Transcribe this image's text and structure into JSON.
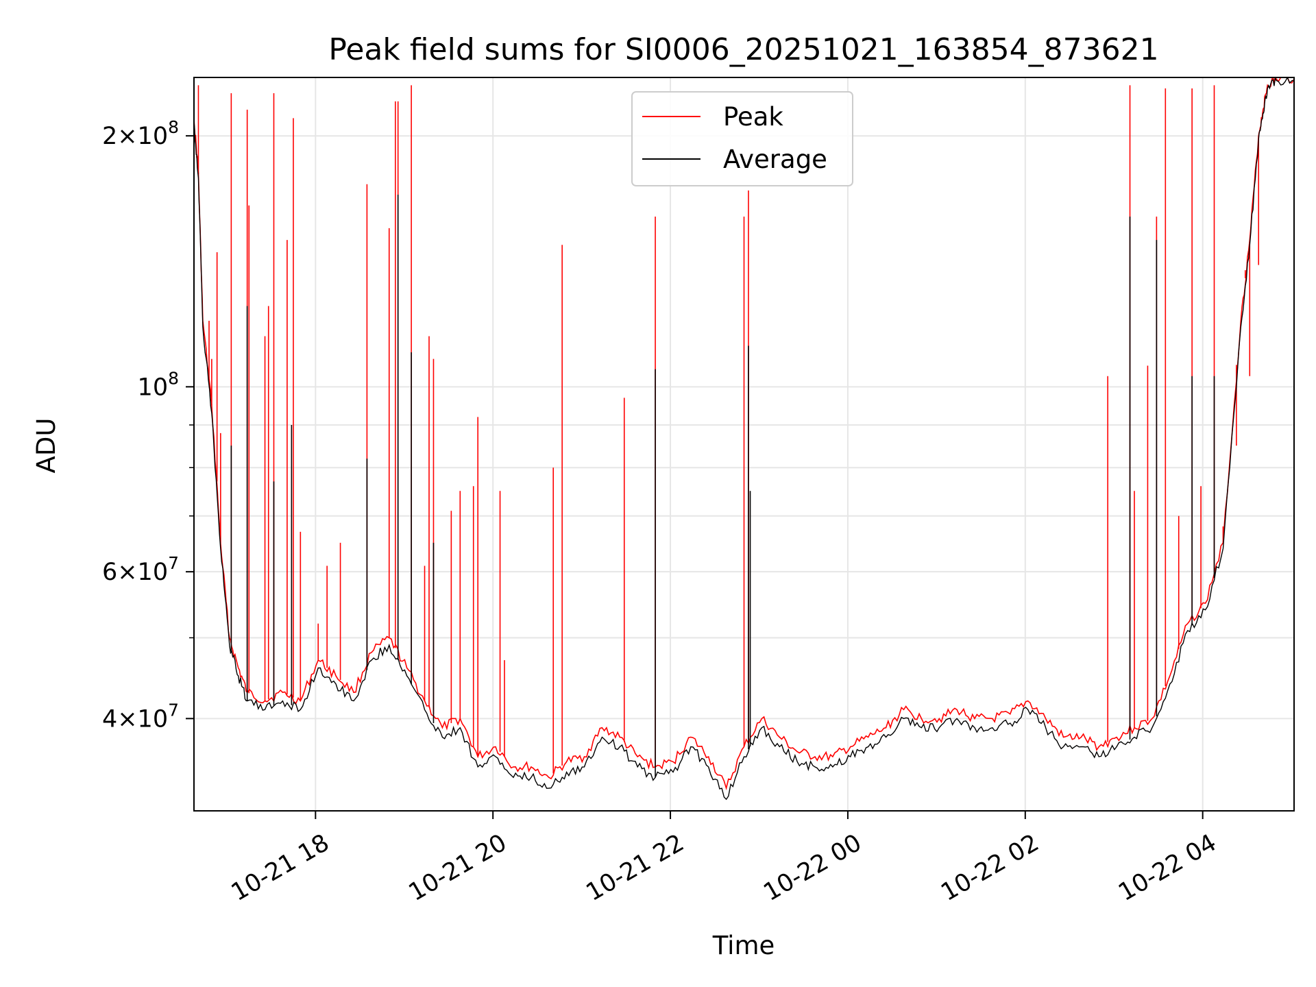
{
  "chart_data": {
    "type": "line",
    "title": "Peak field sums for SI0006_20251021_163854_873621",
    "xlabel": "Time",
    "ylabel": "ADU",
    "yscale": "log",
    "ylim": [
      31000000,
      235000000
    ],
    "xlim_hours_since_2025_10_21_16_38": [
      0,
      12.4
    ],
    "grid": true,
    "legend_position": "top-center",
    "colors": {
      "peak": "#ff0000",
      "average": "#000000"
    },
    "x_ticks": [
      {
        "label": "10-21 18",
        "hour": 1.37
      },
      {
        "label": "10-21 20",
        "hour": 3.37
      },
      {
        "label": "10-21 22",
        "hour": 5.37
      },
      {
        "label": "10-22 00",
        "hour": 7.37
      },
      {
        "label": "10-22 02",
        "hour": 9.37
      },
      {
        "label": "10-22 04",
        "hour": 11.37
      }
    ],
    "y_major_ticks": [
      {
        "label_mantissa": "4×10",
        "label_exp": "7",
        "value": 40000000
      },
      {
        "label_mantissa": "6×10",
        "label_exp": "7",
        "value": 60000000
      },
      {
        "label_mantissa": "10",
        "label_exp": "8",
        "value": 100000000
      },
      {
        "label_mantissa": "2×10",
        "label_exp": "8",
        "value": 200000000
      }
    ],
    "y_minor_ticks": [
      50000000,
      70000000,
      80000000,
      90000000
    ],
    "series": [
      {
        "name": "Peak",
        "color": "#ff0000",
        "x_hours": [
          0.0,
          0.05,
          0.1,
          0.2,
          0.3,
          0.4,
          0.5,
          0.6,
          0.8,
          1.0,
          1.2,
          1.4,
          1.6,
          1.8,
          2.0,
          2.2,
          2.4,
          2.6,
          2.8,
          3.0,
          3.2,
          3.4,
          3.6,
          3.8,
          4.0,
          4.2,
          4.4,
          4.6,
          4.8,
          5.0,
          5.2,
          5.4,
          5.6,
          5.8,
          6.0,
          6.2,
          6.4,
          6.6,
          6.8,
          7.0,
          7.2,
          7.4,
          7.6,
          7.8,
          8.0,
          8.2,
          8.4,
          8.6,
          8.8,
          9.0,
          9.2,
          9.4,
          9.6,
          9.8,
          10.0,
          10.2,
          10.4,
          10.6,
          10.8,
          11.0,
          11.2,
          11.4,
          11.6,
          11.8,
          11.9,
          12.0,
          12.05,
          12.1,
          12.2,
          12.4
        ],
        "values_M": [
          210,
          180,
          120,
          95,
          65,
          50,
          46,
          43,
          42,
          43,
          42,
          47,
          45,
          43,
          48,
          50,
          46,
          42,
          39,
          40,
          36,
          37,
          35,
          35,
          34,
          35.5,
          36,
          39,
          38,
          36,
          35,
          35.5,
          38,
          36,
          33,
          37,
          40,
          38,
          36.5,
          36,
          36,
          37,
          38,
          39,
          41,
          40,
          40,
          41,
          40,
          40,
          40.5,
          42,
          40,
          38,
          38,
          37,
          38,
          39,
          40,
          45,
          52,
          55,
          65,
          120,
          150,
          200,
          215,
          230,
          234,
          234
        ],
        "spikes": [
          {
            "hour": 0.05,
            "value_M": 230
          },
          {
            "hour": 0.17,
            "value_M": 120
          },
          {
            "hour": 0.2,
            "value_M": 108
          },
          {
            "hour": 0.26,
            "value_M": 145
          },
          {
            "hour": 0.3,
            "value_M": 88
          },
          {
            "hour": 0.42,
            "value_M": 225
          },
          {
            "hour": 0.6,
            "value_M": 215
          },
          {
            "hour": 0.62,
            "value_M": 165
          },
          {
            "hour": 0.8,
            "value_M": 115
          },
          {
            "hour": 0.84,
            "value_M": 125
          },
          {
            "hour": 0.9,
            "value_M": 225
          },
          {
            "hour": 1.05,
            "value_M": 150
          },
          {
            "hour": 1.12,
            "value_M": 210
          },
          {
            "hour": 1.2,
            "value_M": 67
          },
          {
            "hour": 1.4,
            "value_M": 52
          },
          {
            "hour": 1.5,
            "value_M": 61
          },
          {
            "hour": 1.65,
            "value_M": 65
          },
          {
            "hour": 1.95,
            "value_M": 175
          },
          {
            "hour": 2.2,
            "value_M": 155
          },
          {
            "hour": 2.27,
            "value_M": 220
          },
          {
            "hour": 2.3,
            "value_M": 220
          },
          {
            "hour": 2.45,
            "value_M": 230
          },
          {
            "hour": 2.6,
            "value_M": 61
          },
          {
            "hour": 2.65,
            "value_M": 115
          },
          {
            "hour": 2.7,
            "value_M": 108
          },
          {
            "hour": 2.9,
            "value_M": 71
          },
          {
            "hour": 3.0,
            "value_M": 75
          },
          {
            "hour": 3.15,
            "value_M": 76
          },
          {
            "hour": 3.2,
            "value_M": 92
          },
          {
            "hour": 3.45,
            "value_M": 75
          },
          {
            "hour": 3.5,
            "value_M": 47
          },
          {
            "hour": 4.05,
            "value_M": 80
          },
          {
            "hour": 4.15,
            "value_M": 148
          },
          {
            "hour": 4.85,
            "value_M": 97
          },
          {
            "hour": 5.2,
            "value_M": 160
          },
          {
            "hour": 6.2,
            "value_M": 160
          },
          {
            "hour": 6.25,
            "value_M": 172
          },
          {
            "hour": 10.3,
            "value_M": 103
          },
          {
            "hour": 10.55,
            "value_M": 230
          },
          {
            "hour": 10.6,
            "value_M": 75
          },
          {
            "hour": 10.75,
            "value_M": 106
          },
          {
            "hour": 10.85,
            "value_M": 160
          },
          {
            "hour": 10.95,
            "value_M": 228
          },
          {
            "hour": 11.1,
            "value_M": 70
          },
          {
            "hour": 11.25,
            "value_M": 228
          },
          {
            "hour": 11.35,
            "value_M": 76
          },
          {
            "hour": 11.5,
            "value_M": 230
          },
          {
            "hour": 11.6,
            "value_M": 68
          },
          {
            "hour": 11.75,
            "value_M": 85
          },
          {
            "hour": 11.85,
            "value_M": 138
          },
          {
            "hour": 11.9,
            "value_M": 103
          },
          {
            "hour": 12.0,
            "value_M": 140
          }
        ]
      },
      {
        "name": "Average",
        "color": "#000000",
        "x_hours": [
          0.0,
          0.05,
          0.1,
          0.2,
          0.3,
          0.4,
          0.5,
          0.6,
          0.8,
          1.0,
          1.2,
          1.4,
          1.6,
          1.8,
          2.0,
          2.2,
          2.4,
          2.6,
          2.8,
          3.0,
          3.2,
          3.4,
          3.6,
          3.8,
          4.0,
          4.2,
          4.4,
          4.6,
          4.8,
          5.0,
          5.2,
          5.4,
          5.6,
          5.8,
          6.0,
          6.2,
          6.4,
          6.6,
          6.8,
          7.0,
          7.2,
          7.4,
          7.6,
          7.8,
          8.0,
          8.2,
          8.4,
          8.6,
          8.8,
          9.0,
          9.2,
          9.4,
          9.6,
          9.8,
          10.0,
          10.2,
          10.4,
          10.6,
          10.8,
          11.0,
          11.2,
          11.4,
          11.6,
          11.8,
          11.9,
          12.0,
          12.05,
          12.1,
          12.2,
          12.4
        ],
        "values_M": [
          208,
          178,
          118,
          93,
          64,
          49,
          45,
          42,
          41,
          42,
          41,
          46,
          44,
          42,
          47,
          49,
          45,
          41,
          38,
          39,
          35,
          36,
          34,
          34,
          33,
          34.5,
          35,
          38,
          37,
          35,
          34,
          34.5,
          37,
          35,
          32,
          36,
          39,
          37,
          35.5,
          35,
          35,
          36,
          37,
          38,
          40,
          39,
          39,
          40,
          39,
          39,
          39.5,
          41,
          39,
          37,
          37,
          36,
          37,
          38,
          39,
          44,
          51,
          54,
          64,
          118,
          148,
          198,
          213,
          228,
          233,
          233
        ],
        "spikes": [
          {
            "hour": 0.42,
            "value_M": 85
          },
          {
            "hour": 0.6,
            "value_M": 125
          },
          {
            "hour": 0.9,
            "value_M": 77
          },
          {
            "hour": 1.1,
            "value_M": 90
          },
          {
            "hour": 1.95,
            "value_M": 82
          },
          {
            "hour": 2.3,
            "value_M": 170
          },
          {
            "hour": 2.45,
            "value_M": 110
          },
          {
            "hour": 2.7,
            "value_M": 65
          },
          {
            "hour": 5.2,
            "value_M": 105
          },
          {
            "hour": 6.25,
            "value_M": 112
          },
          {
            "hour": 6.27,
            "value_M": 75
          },
          {
            "hour": 10.55,
            "value_M": 160
          },
          {
            "hour": 10.85,
            "value_M": 150
          },
          {
            "hour": 11.25,
            "value_M": 103
          },
          {
            "hour": 11.5,
            "value_M": 103
          }
        ]
      }
    ]
  }
}
